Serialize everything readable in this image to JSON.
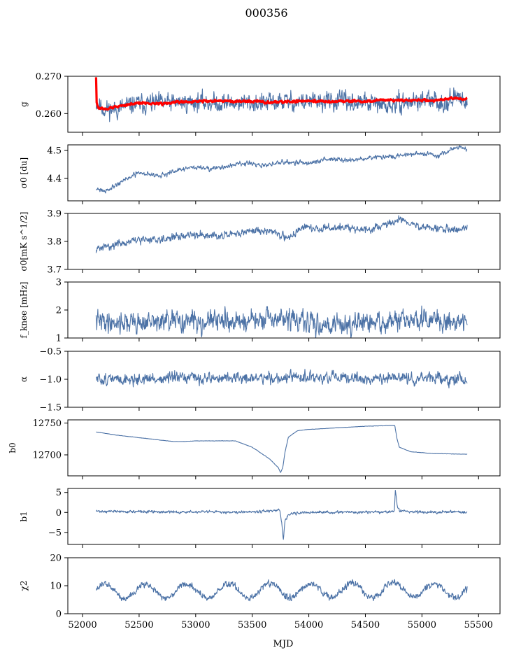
{
  "title": "000356",
  "xlabel": "MJD",
  "x_ticks": [
    "52000",
    "52500",
    "53000",
    "53500",
    "54000",
    "54500",
    "55000",
    "55500"
  ],
  "colors": {
    "series": "#4c72a6",
    "fit": "#ff0000"
  },
  "chart_data": [
    {
      "type": "line",
      "ylabel": "g",
      "ylim": [
        0.255,
        0.27
      ],
      "yticks": [
        {
          "v": 0.26,
          "t": "0.260"
        },
        {
          "v": 0.27,
          "t": "0.270"
        }
      ],
      "series": [
        {
          "noise": 0.0015,
          "seed": 11,
          "points": [
            [
              52120,
              0.2628
            ],
            [
              52200,
              0.2611
            ],
            [
              52300,
              0.2612
            ],
            [
              52450,
              0.2625
            ],
            [
              52600,
              0.2627
            ],
            [
              52800,
              0.2628
            ],
            [
              53000,
              0.2632
            ],
            [
              53200,
              0.2628
            ],
            [
              53400,
              0.263
            ],
            [
              53600,
              0.2627
            ],
            [
              53800,
              0.2633
            ],
            [
              54000,
              0.2631
            ],
            [
              54200,
              0.2633
            ],
            [
              54400,
              0.263
            ],
            [
              54600,
              0.2626
            ],
            [
              54700,
              0.2618
            ],
            [
              54800,
              0.2628
            ],
            [
              55000,
              0.2635
            ],
            [
              55200,
              0.263
            ],
            [
              55300,
              0.2643
            ],
            [
              55400,
              0.2638
            ]
          ]
        },
        {
          "fit": true,
          "noise": 0.0002,
          "seed": 12,
          "points": [
            [
              52120,
              0.27
            ],
            [
              52125,
              0.2628
            ],
            [
              52140,
              0.2615
            ],
            [
              52200,
              0.2612
            ],
            [
              52300,
              0.2618
            ],
            [
              52400,
              0.2625
            ],
            [
              52500,
              0.2628
            ],
            [
              52700,
              0.2627
            ],
            [
              52900,
              0.2632
            ],
            [
              53100,
              0.2634
            ],
            [
              53300,
              0.2633
            ],
            [
              53500,
              0.2632
            ],
            [
              53700,
              0.263
            ],
            [
              53900,
              0.2634
            ],
            [
              54100,
              0.2632
            ],
            [
              54300,
              0.2634
            ],
            [
              54500,
              0.2633
            ],
            [
              54700,
              0.2636
            ],
            [
              54900,
              0.2636
            ],
            [
              55100,
              0.2635
            ],
            [
              55300,
              0.2642
            ],
            [
              55400,
              0.2638
            ]
          ]
        }
      ]
    },
    {
      "type": "line",
      "ylabel": "σ0 [du]",
      "ylim": [
        4.32,
        4.52
      ],
      "yticks": [
        {
          "v": 4.4,
          "t": "4.4"
        },
        {
          "v": 4.5,
          "t": "4.5"
        }
      ],
      "series": [
        {
          "noise": 0.005,
          "seed": 21,
          "points": [
            [
              52120,
              4.365
            ],
            [
              52200,
              4.355
            ],
            [
              52350,
              4.39
            ],
            [
              52500,
              4.42
            ],
            [
              52700,
              4.41
            ],
            [
              52900,
              4.435
            ],
            [
              53000,
              4.44
            ],
            [
              53200,
              4.435
            ],
            [
              53400,
              4.455
            ],
            [
              53600,
              4.445
            ],
            [
              53800,
              4.46
            ],
            [
              54000,
              4.455
            ],
            [
              54200,
              4.47
            ],
            [
              54400,
              4.465
            ],
            [
              54600,
              4.475
            ],
            [
              54800,
              4.48
            ],
            [
              55000,
              4.49
            ],
            [
              55150,
              4.48
            ],
            [
              55300,
              4.515
            ],
            [
              55400,
              4.5
            ]
          ]
        }
      ]
    },
    {
      "type": "line",
      "ylabel": "σ0[mK s^1/2]",
      "ylim": [
        3.7,
        3.9
      ],
      "yticks": [
        {
          "v": 3.7,
          "t": "3.7"
        },
        {
          "v": 3.8,
          "t": "3.8"
        },
        {
          "v": 3.9,
          "t": "3.9"
        }
      ],
      "series": [
        {
          "noise": 0.008,
          "seed": 31,
          "points": [
            [
              52120,
              3.772
            ],
            [
              52300,
              3.79
            ],
            [
              52500,
              3.805
            ],
            [
              52700,
              3.81
            ],
            [
              52900,
              3.82
            ],
            [
              53100,
              3.825
            ],
            [
              53300,
              3.82
            ],
            [
              53500,
              3.84
            ],
            [
              53700,
              3.835
            ],
            [
              53800,
              3.81
            ],
            [
              53950,
              3.85
            ],
            [
              54100,
              3.845
            ],
            [
              54300,
              3.85
            ],
            [
              54500,
              3.84
            ],
            [
              54700,
              3.86
            ],
            [
              54800,
              3.88
            ],
            [
              55000,
              3.85
            ],
            [
              55200,
              3.845
            ],
            [
              55300,
              3.84
            ],
            [
              55400,
              3.85
            ]
          ]
        }
      ]
    },
    {
      "type": "line",
      "ylabel": "f_knee [mHz]",
      "ylim": [
        1,
        3
      ],
      "yticks": [
        {
          "v": 1,
          "t": "1"
        },
        {
          "v": 2,
          "t": "2"
        },
        {
          "v": 3,
          "t": "3"
        }
      ],
      "series": [
        {
          "noise": 0.22,
          "seed": 41,
          "points": [
            [
              52120,
              1.6
            ],
            [
              52500,
              1.55
            ],
            [
              53000,
              1.6
            ],
            [
              53500,
              1.6
            ],
            [
              53800,
              1.7
            ],
            [
              54000,
              1.5
            ],
            [
              54500,
              1.5
            ],
            [
              55000,
              1.65
            ],
            [
              55400,
              1.6
            ]
          ]
        }
      ]
    },
    {
      "type": "line",
      "ylabel": "α",
      "ylim": [
        -1.5,
        -0.5
      ],
      "yticks": [
        {
          "v": -1.5,
          "t": "−1.5"
        },
        {
          "v": -1.0,
          "t": "−1.0"
        },
        {
          "v": -0.5,
          "t": "−0.5"
        }
      ],
      "series": [
        {
          "noise": 0.06,
          "seed": 51,
          "points": [
            [
              52120,
              -1.0
            ],
            [
              52500,
              -1.0
            ],
            [
              53000,
              -0.98
            ],
            [
              53500,
              -0.98
            ],
            [
              54000,
              -0.97
            ],
            [
              54500,
              -0.99
            ],
            [
              55000,
              -0.98
            ],
            [
              55400,
              -1.0
            ]
          ]
        }
      ]
    },
    {
      "type": "line",
      "ylabel": "b0",
      "ylim": [
        12667,
        12755
      ],
      "yticks": [
        {
          "v": 12700,
          "t": "12700"
        },
        {
          "v": 12750,
          "t": "12750"
        }
      ],
      "series": [
        {
          "noise": 0.15,
          "seed": 61,
          "points": [
            [
              52120,
              12736
            ],
            [
              52300,
              12731
            ],
            [
              52500,
              12727
            ],
            [
              52700,
              12723
            ],
            [
              52800,
              12721
            ],
            [
              52900,
              12721
            ],
            [
              53000,
              12722
            ],
            [
              53100,
              12722
            ],
            [
              53300,
              12722
            ],
            [
              53350,
              12722
            ],
            [
              53500,
              12712
            ],
            [
              53650,
              12694
            ],
            [
              53730,
              12680
            ],
            [
              53750,
              12672
            ],
            [
              53770,
              12680
            ],
            [
              53790,
              12705
            ],
            [
              53820,
              12728
            ],
            [
              53900,
              12738
            ],
            [
              54000,
              12740
            ],
            [
              54200,
              12742
            ],
            [
              54500,
              12745
            ],
            [
              54700,
              12746
            ],
            [
              54760,
              12746
            ],
            [
              54780,
              12725
            ],
            [
              54800,
              12712
            ],
            [
              54900,
              12705
            ],
            [
              55100,
              12702
            ],
            [
              55400,
              12701
            ]
          ]
        }
      ]
    },
    {
      "type": "line",
      "ylabel": "b1",
      "ylim": [
        -8,
        6
      ],
      "yticks": [
        {
          "v": -5,
          "t": "−5"
        },
        {
          "v": 0,
          "t": "0"
        },
        {
          "v": 5,
          "t": "5"
        }
      ],
      "series": [
        {
          "noise": 0.2,
          "seed": 71,
          "points": [
            [
              52120,
              0.3
            ],
            [
              52800,
              0.1
            ],
            [
              53300,
              0.1
            ],
            [
              53700,
              0.4
            ],
            [
              53740,
              0.6
            ],
            [
              53760,
              -2.5
            ],
            [
              53775,
              -7
            ],
            [
              53790,
              -2
            ],
            [
              53810,
              -1
            ],
            [
              53850,
              -0.3
            ],
            [
              54000,
              0
            ],
            [
              54700,
              0.1
            ],
            [
              54755,
              0.3
            ],
            [
              54765,
              5.5
            ],
            [
              54780,
              2
            ],
            [
              54800,
              0.4
            ],
            [
              55000,
              0.1
            ],
            [
              55400,
              0.1
            ]
          ]
        }
      ]
    },
    {
      "type": "line",
      "ylabel": "χ2",
      "ylim": [
        0,
        20
      ],
      "yticks": [
        {
          "v": 0,
          "t": "0"
        },
        {
          "v": 10,
          "t": "10"
        },
        {
          "v": 20,
          "t": "20"
        }
      ],
      "series": [
        {
          "noise": 0.7,
          "seed": 81,
          "periodic": {
            "period": 365,
            "amp": 2.5,
            "phase": 0.3
          },
          "points": [
            [
              52120,
              8
            ],
            [
              55400,
              8.5
            ]
          ]
        }
      ]
    }
  ]
}
